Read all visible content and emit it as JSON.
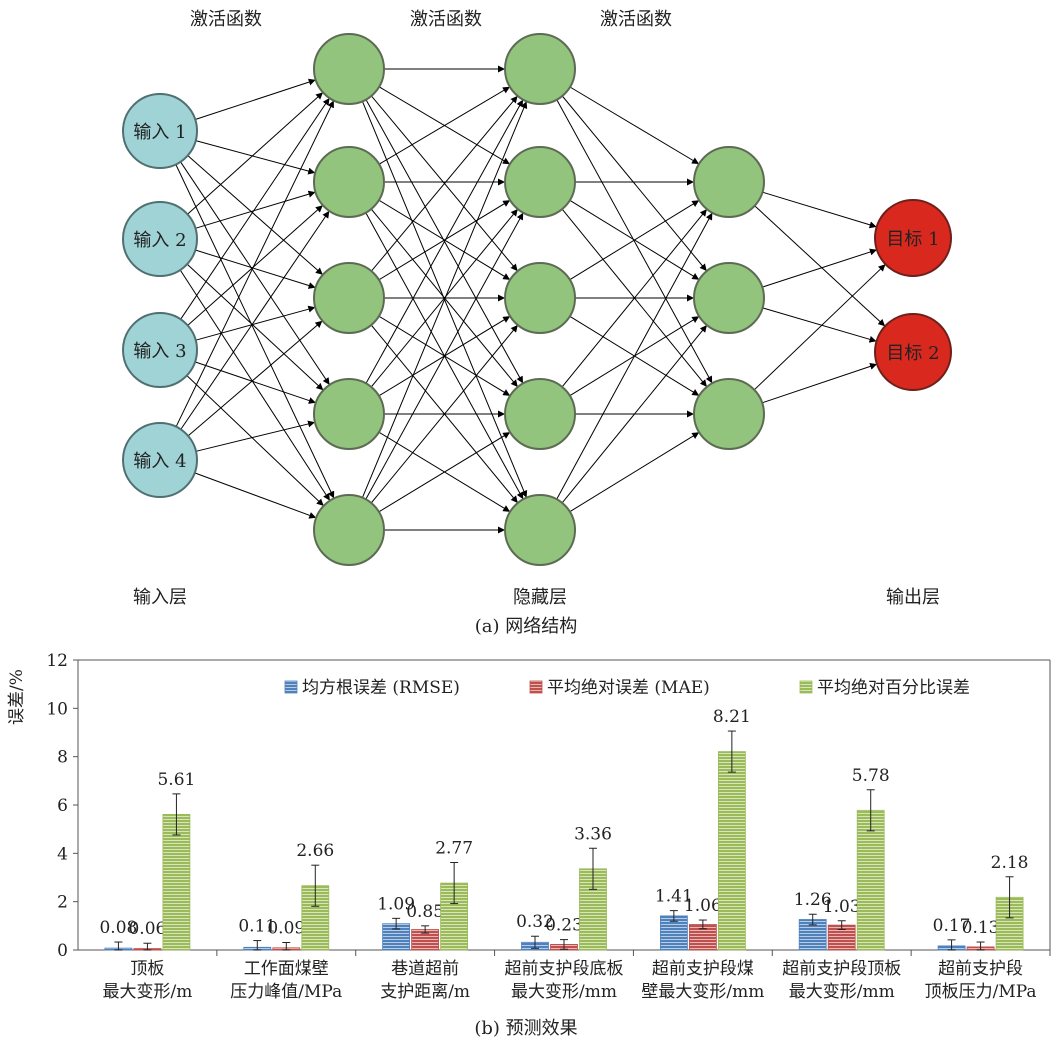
{
  "network": {
    "activation_labels": [
      "激活函数",
      "激活函数",
      "激活函数"
    ],
    "input_nodes": [
      "输入 1",
      "输入 2",
      "输入 3",
      "输入 4"
    ],
    "output_nodes": [
      "目标 1",
      "目标 2"
    ],
    "layer_labels": {
      "input": "输入层",
      "hidden": "隐藏层",
      "output": "输出层"
    },
    "caption": "(a) 网络结构",
    "colors": {
      "input": "#9fd3d6",
      "hidden": "#93c47d",
      "output": "#d9291f"
    }
  },
  "chart_data": {
    "type": "bar",
    "caption": "(b) 预测效果",
    "ylabel": "误差/%",
    "ylim": [
      0,
      12
    ],
    "yticks": [
      0,
      2,
      4,
      6,
      8,
      10,
      12
    ],
    "grid": false,
    "legend_position": "top-right",
    "categories": [
      [
        "顶板",
        "最大变形/m"
      ],
      [
        "工作面煤壁",
        "压力峰值/MPa"
      ],
      [
        "巷道超前",
        "支护距离/m"
      ],
      [
        "超前支护段底板",
        "最大变形/mm"
      ],
      [
        "超前支护段煤",
        "壁最大变形/mm"
      ],
      [
        "超前支护段顶板",
        "最大变形/mm"
      ],
      [
        "超前支护段",
        "顶板压力/MPa"
      ]
    ],
    "series": [
      {
        "name": "均方根误差 (RMSE)",
        "color": "#4f81bd",
        "values": [
          0.08,
          0.11,
          1.09,
          0.32,
          1.41,
          1.26,
          0.17
        ],
        "errors": [
          0.25,
          0.28,
          0.22,
          0.25,
          0.22,
          0.22,
          0.25
        ]
      },
      {
        "name": "平均绝对误差 (MAE)",
        "color": "#c0504d",
        "values": [
          0.06,
          0.09,
          0.85,
          0.23,
          1.06,
          1.03,
          0.13
        ],
        "errors": [
          0.22,
          0.22,
          0.15,
          0.2,
          0.18,
          0.18,
          0.2
        ]
      },
      {
        "name": "平均绝对百分比误差",
        "color": "#9bbb59",
        "values": [
          5.61,
          2.66,
          2.77,
          3.36,
          8.21,
          5.78,
          2.18
        ],
        "errors": [
          0.85,
          0.85,
          0.85,
          0.85,
          0.85,
          0.85,
          0.85
        ]
      }
    ]
  }
}
